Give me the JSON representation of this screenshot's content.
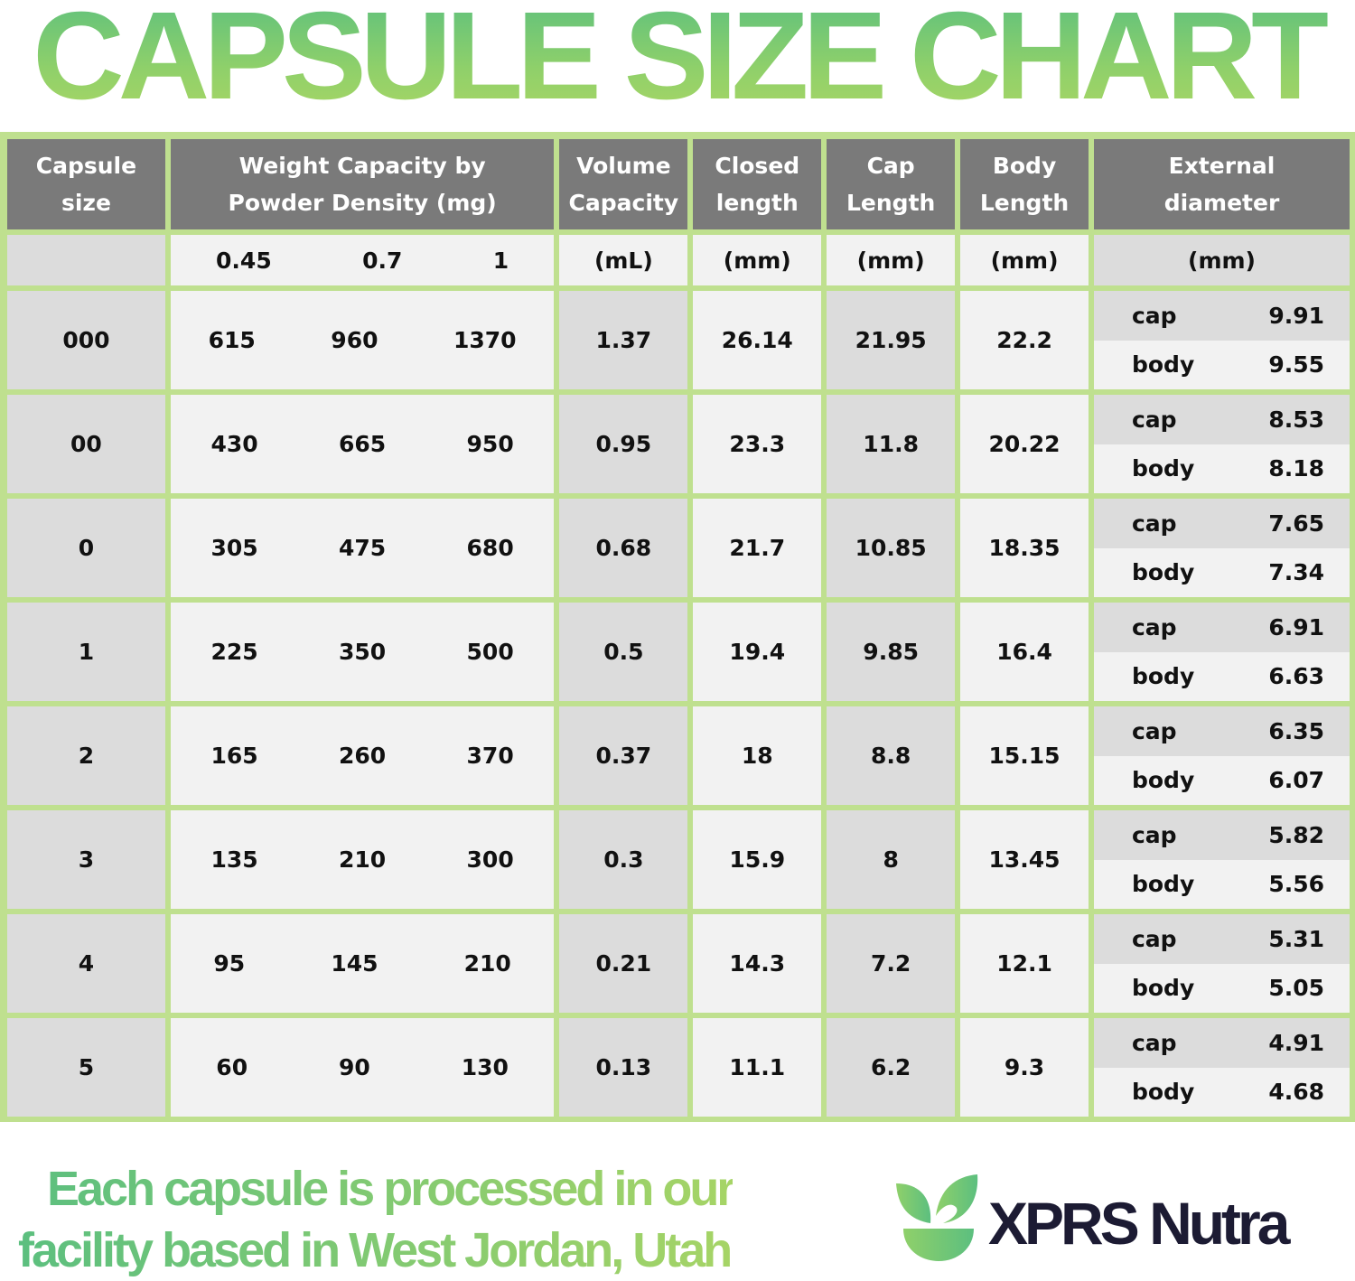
{
  "title": "CAPSULE SIZE CHART",
  "table": {
    "headers": [
      "Capsule size",
      "Weight Capacity by Powder Density (mg)",
      "Volume Capacity",
      "Closed length",
      "Cap Length",
      "Body Length",
      "External diameter"
    ],
    "units": {
      "size": "",
      "densities": [
        "0.45",
        "0.7",
        "1"
      ],
      "volume": "(mL)",
      "closed": "(mm)",
      "cap": "(mm)",
      "body": "(mm)",
      "ext": "(mm)"
    },
    "cap_label": "cap",
    "body_label": "body",
    "rows": [
      {
        "size": "000",
        "w": [
          "615",
          "960",
          "1370"
        ],
        "vol": "1.37",
        "closed": "26.14",
        "cap": "21.95",
        "body": "22.2",
        "ext_cap": "9.91",
        "ext_body": "9.55"
      },
      {
        "size": "00",
        "w": [
          "430",
          "665",
          "950"
        ],
        "vol": "0.95",
        "closed": "23.3",
        "cap": "11.8",
        "body": "20.22",
        "ext_cap": "8.53",
        "ext_body": "8.18"
      },
      {
        "size": "0",
        "w": [
          "305",
          "475",
          "680"
        ],
        "vol": "0.68",
        "closed": "21.7",
        "cap": "10.85",
        "body": "18.35",
        "ext_cap": "7.65",
        "ext_body": "7.34"
      },
      {
        "size": "1",
        "w": [
          "225",
          "350",
          "500"
        ],
        "vol": "0.5",
        "closed": "19.4",
        "cap": "9.85",
        "body": "16.4",
        "ext_cap": "6.91",
        "ext_body": "6.63"
      },
      {
        "size": "2",
        "w": [
          "165",
          "260",
          "370"
        ],
        "vol": "0.37",
        "closed": "18",
        "cap": "8.8",
        "body": "15.15",
        "ext_cap": "6.35",
        "ext_body": "6.07"
      },
      {
        "size": "3",
        "w": [
          "135",
          "210",
          "300"
        ],
        "vol": "0.3",
        "closed": "15.9",
        "cap": "8",
        "body": "13.45",
        "ext_cap": "5.82",
        "ext_body": "5.56"
      },
      {
        "size": "4",
        "w": [
          "95",
          "145",
          "210"
        ],
        "vol": "0.21",
        "closed": "14.3",
        "cap": "7.2",
        "body": "12.1",
        "ext_cap": "5.31",
        "ext_body": "5.05"
      },
      {
        "size": "5",
        "w": [
          "60",
          "90",
          "130"
        ],
        "vol": "0.13",
        "closed": "11.1",
        "cap": "6.2",
        "body": "9.3",
        "ext_cap": "4.91",
        "ext_body": "4.68"
      }
    ]
  },
  "footer": {
    "line1": "Each capsule is processed in our",
    "line2": "facility based in West Jordan, Utah",
    "brand": "XPRS Nutra"
  },
  "colors": {
    "border": "#bfe08f",
    "header": "#7a7a7a",
    "brand_text": "#1c1b33",
    "accent_green": "#5cbf7f"
  }
}
